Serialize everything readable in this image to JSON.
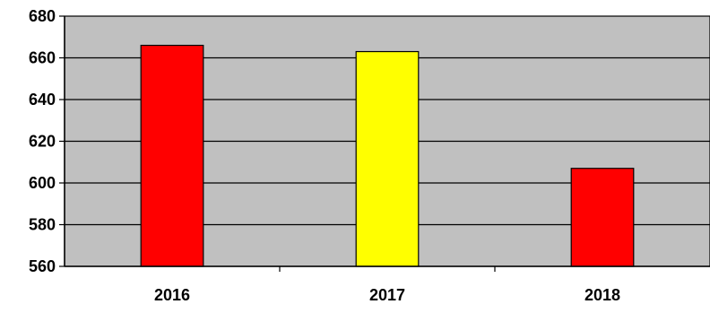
{
  "chart_data": {
    "type": "bar",
    "title": "",
    "xlabel": "",
    "ylabel": "",
    "categories": [
      "2016",
      "2017",
      "2018"
    ],
    "values": [
      666,
      663,
      607
    ],
    "bar_colors": [
      "#ff0000",
      "#ffff00",
      "#ff0000"
    ],
    "ylim": [
      560,
      680
    ],
    "yticks": [
      560,
      580,
      600,
      620,
      640,
      660,
      680
    ],
    "grid": "horizontal",
    "legend": "none",
    "plot_background": "#c0c0c0",
    "bar_outline": "#000000"
  }
}
